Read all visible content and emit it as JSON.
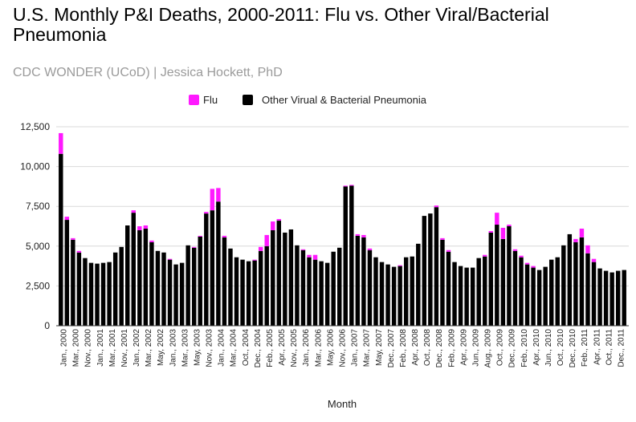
{
  "chart_data": {
    "type": "bar",
    "stacked": true,
    "title": "U.S. Monthly P&I Deaths, 2000-2011: Flu vs. Other Viral/Bacterial Pneumonia",
    "subtitle": "CDC WONDER (UCoD) | Jessica Hockett, PhD",
    "xlabel": "Month",
    "ylabel": "",
    "ylim": [
      0,
      12500
    ],
    "yticks": [
      0,
      2500,
      5000,
      7500,
      10000,
      12500
    ],
    "ytick_labels": [
      "0",
      "2,500",
      "5,000",
      "7,500",
      "10,000",
      "12,500"
    ],
    "grid": true,
    "legend_position": "top-center",
    "colors": {
      "Flu": "#ff19ff",
      "Other Virual & Bacterial Pneumonia": "#000000",
      "grid": "#d9d9d9"
    },
    "x_tick_labels": [
      "Jan., 2000",
      "Mar., 2000",
      "Nov., 2000",
      "Jan., 2001",
      "Mar., 2001",
      "Nov., 2001",
      "Jan., 2002",
      "Mar., 2002",
      "May, 2002",
      "Jan., 2003",
      "Mar., 2003",
      "May, 2003",
      "Nov., 2003",
      "Jan., 2004",
      "Mar., 2004",
      "Oct., 2004",
      "Dec., 2004",
      "Feb., 2005",
      "Apr., 2005",
      "Nov., 2005",
      "Jan., 2006",
      "Mar., 2006",
      "May, 2006",
      "Nov., 2006",
      "Jan., 2007",
      "Mar., 2007",
      "May, 2007",
      "Dec., 2007",
      "Feb., 2008",
      "Apr., 2008",
      "Oct., 2008",
      "Dec., 2008",
      "Feb., 2009",
      "Apr., 2009",
      "Jun., 2009",
      "Aug., 2009",
      "Oct., 2009",
      "Dec., 2009",
      "Feb., 2010",
      "Apr., 2010",
      "Jun., 2010",
      "Oct., 2010",
      "Dec., 2010",
      "Feb., 2011",
      "Apr., 2011",
      "Oct., 2011",
      "Dec., 2011"
    ],
    "series": [
      {
        "name": "Other Virual & Bacterial Pneumonia",
        "values": [
          10800,
          6650,
          5400,
          4600,
          4250,
          3950,
          3900,
          3950,
          4000,
          4600,
          4950,
          6300,
          7100,
          6000,
          6100,
          5250,
          4700,
          4600,
          4150,
          3850,
          3950,
          5050,
          4900,
          5600,
          7050,
          7250,
          7800,
          5550,
          4850,
          4300,
          4150,
          4050,
          4100,
          4700,
          5000,
          6000,
          6600,
          5850,
          6050,
          5050,
          4750,
          4300,
          4150,
          4050,
          3950,
          4650,
          4900,
          8750,
          8800,
          5650,
          5550,
          4750,
          4300,
          4000,
          3850,
          3700,
          3750,
          4300,
          4350,
          5150,
          6900,
          7050,
          7450,
          5400,
          4650,
          4000,
          3750,
          3650,
          3650,
          4250,
          4350,
          5850,
          6350,
          5450,
          6250,
          4700,
          4300,
          3850,
          3650,
          3500,
          3700,
          4150,
          4300,
          5050,
          5750,
          5250,
          5550,
          4550,
          4000,
          3600,
          3450,
          3350,
          3450,
          3500
        ]
      },
      {
        "name": "Flu",
        "values": [
          1300,
          200,
          100,
          100,
          0,
          0,
          0,
          0,
          0,
          0,
          0,
          0,
          150,
          250,
          200,
          100,
          0,
          0,
          50,
          0,
          0,
          0,
          50,
          50,
          100,
          1350,
          850,
          100,
          0,
          0,
          0,
          0,
          50,
          250,
          700,
          550,
          100,
          0,
          0,
          0,
          50,
          150,
          300,
          0,
          0,
          0,
          0,
          50,
          50,
          100,
          150,
          100,
          0,
          0,
          0,
          0,
          50,
          0,
          0,
          0,
          0,
          0,
          100,
          100,
          100,
          0,
          0,
          0,
          0,
          0,
          100,
          100,
          750,
          700,
          100,
          100,
          100,
          100,
          100,
          0,
          0,
          0,
          0,
          0,
          0,
          200,
          550,
          500,
          200,
          0,
          0,
          0,
          0,
          0
        ]
      }
    ]
  }
}
